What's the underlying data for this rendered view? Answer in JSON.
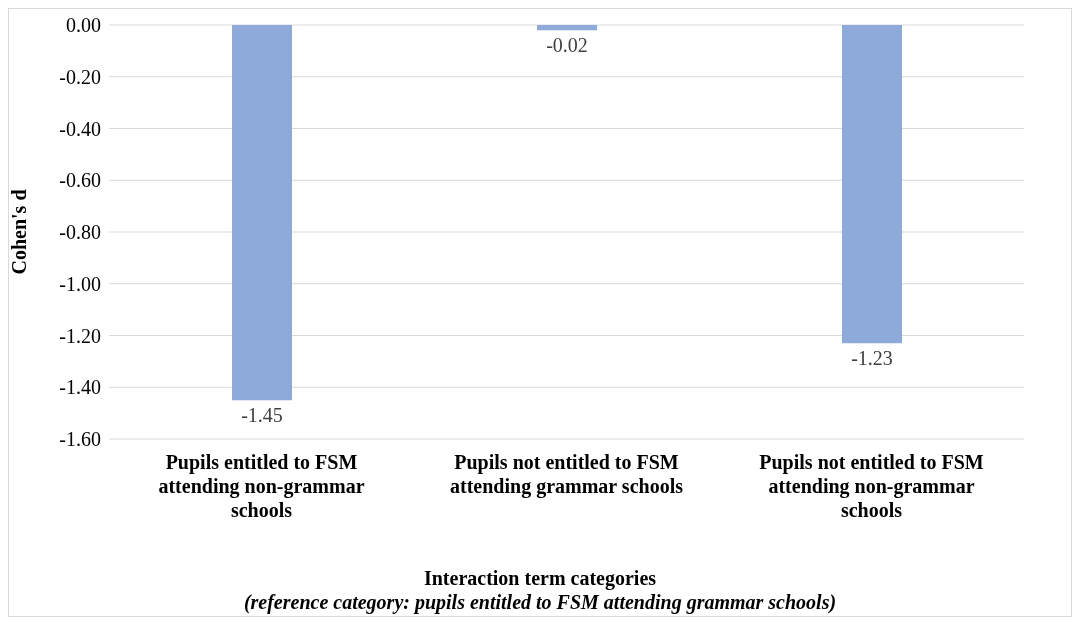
{
  "chart_data": {
    "type": "bar",
    "categories": [
      "Pupils entitled to FSM attending non-grammar schools",
      "Pupils not entitled to FSM attending grammar schools",
      "Pupils not entitled to FSM attending non-grammar schools"
    ],
    "values": [
      -1.45,
      -0.02,
      -1.23
    ],
    "color": "#8eaadb",
    "ylim": [
      -1.6,
      0
    ],
    "yticks": [
      {
        "value": 0,
        "label": "0.00"
      },
      {
        "value": -0.2,
        "label": "-0.20"
      },
      {
        "value": -0.4,
        "label": "-0.40"
      },
      {
        "value": -0.6,
        "label": "-0.60"
      },
      {
        "value": -0.8,
        "label": "-0.80"
      },
      {
        "value": -1,
        "label": "-1.00"
      },
      {
        "value": -1.2,
        "label": "-1.20"
      },
      {
        "value": -1.4,
        "label": "-1.40"
      },
      {
        "value": -1.6,
        "label": "-1.60"
      }
    ],
    "grid": "y",
    "data_labels": true,
    "ylabel": "Cohen's d",
    "xlabel": "Interaction term categories",
    "annotations": [
      "(reference category: pupils entitled to FSM attending grammar schools)"
    ]
  }
}
